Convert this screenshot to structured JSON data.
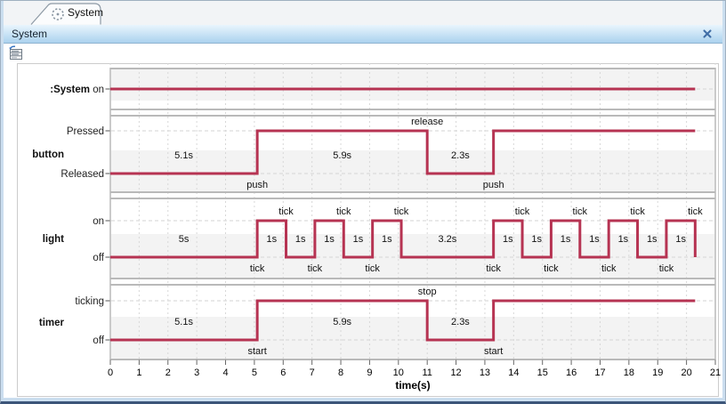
{
  "window": {
    "tab": {
      "label": "System",
      "icon": "timing-diagram-icon"
    },
    "title_bar": {
      "title": "System",
      "close_icon": "close-icon"
    },
    "toolbar": {
      "export_icon": "export-tsv-csv-icon"
    }
  },
  "colors": {
    "lifeline": "#b63352",
    "state_band": "#f3f3f3",
    "lane_border": "#b9b9b9",
    "grid_line": "#d8d8d8",
    "titlebar_top": "#e9f5fd",
    "titlebar_bottom": "#abd2ee",
    "close_x": "#3f6da6"
  },
  "chart_data": {
    "type": "timing-diagram",
    "title": "System",
    "xlabel": "time(s)",
    "xlim": [
      0,
      21
    ],
    "x_ticks": [
      0,
      1,
      2,
      3,
      4,
      5,
      6,
      7,
      8,
      9,
      10,
      11,
      12,
      13,
      14,
      15,
      16,
      17,
      18,
      19,
      20,
      21
    ],
    "solid_end": 20.3,
    "grid": true,
    "lifelines": [
      {
        "name": ":System",
        "states": [
          "on"
        ],
        "segments": [
          {
            "state": "on",
            "t0": 0,
            "t1": 20.3,
            "label": null
          }
        ],
        "events": []
      },
      {
        "name": "button",
        "states": [
          "Pressed",
          "Released"
        ],
        "segments": [
          {
            "state": "Released",
            "t0": 0,
            "t1": 5.1,
            "label": "5.1s"
          },
          {
            "state": "Pressed",
            "t0": 5.1,
            "t1": 11,
            "label": "5.9s"
          },
          {
            "state": "Released",
            "t0": 11,
            "t1": 13.3,
            "label": "2.3s"
          },
          {
            "state": "Pressed",
            "t0": 13.3,
            "t1": 20.3,
            "label": null
          }
        ],
        "events": [
          {
            "name": "push",
            "t": 5.1,
            "position": "below"
          },
          {
            "name": "release",
            "t": 11,
            "position": "above"
          },
          {
            "name": "push",
            "t": 13.3,
            "position": "below"
          }
        ]
      },
      {
        "name": "light",
        "states": [
          "on",
          "off"
        ],
        "segments": [
          {
            "state": "off",
            "t0": 0,
            "t1": 5.1,
            "label": "5s"
          },
          {
            "state": "on",
            "t0": 5.1,
            "t1": 6.1,
            "label": "1s"
          },
          {
            "state": "off",
            "t0": 6.1,
            "t1": 7.1,
            "label": "1s"
          },
          {
            "state": "on",
            "t0": 7.1,
            "t1": 8.1,
            "label": "1s"
          },
          {
            "state": "off",
            "t0": 8.1,
            "t1": 9.1,
            "label": "1s"
          },
          {
            "state": "on",
            "t0": 9.1,
            "t1": 10.1,
            "label": "1s"
          },
          {
            "state": "off",
            "t0": 10.1,
            "t1": 13.3,
            "label": "3.2s"
          },
          {
            "state": "on",
            "t0": 13.3,
            "t1": 14.3,
            "label": "1s"
          },
          {
            "state": "off",
            "t0": 14.3,
            "t1": 15.3,
            "label": "1s"
          },
          {
            "state": "on",
            "t0": 15.3,
            "t1": 16.3,
            "label": "1s"
          },
          {
            "state": "off",
            "t0": 16.3,
            "t1": 17.3,
            "label": "1s"
          },
          {
            "state": "on",
            "t0": 17.3,
            "t1": 18.3,
            "label": "1s"
          },
          {
            "state": "off",
            "t0": 18.3,
            "t1": 19.3,
            "label": "1s"
          },
          {
            "state": "on",
            "t0": 19.3,
            "t1": 20.3,
            "label": "1s"
          },
          {
            "state": "off",
            "t0": 20.3,
            "t1": 20.3,
            "label": null
          }
        ],
        "events": [
          {
            "name": "tick",
            "t": 5.1,
            "position": "below"
          },
          {
            "name": "tick",
            "t": 6.1,
            "position": "above"
          },
          {
            "name": "tick",
            "t": 7.1,
            "position": "below"
          },
          {
            "name": "tick",
            "t": 8.1,
            "position": "above"
          },
          {
            "name": "tick",
            "t": 9.1,
            "position": "below"
          },
          {
            "name": "tick",
            "t": 10.1,
            "position": "above"
          },
          {
            "name": "tick",
            "t": 13.3,
            "position": "below"
          },
          {
            "name": "tick",
            "t": 14.3,
            "position": "above"
          },
          {
            "name": "tick",
            "t": 15.3,
            "position": "below"
          },
          {
            "name": "tick",
            "t": 16.3,
            "position": "above"
          },
          {
            "name": "tick",
            "t": 17.3,
            "position": "below"
          },
          {
            "name": "tick",
            "t": 18.3,
            "position": "above"
          },
          {
            "name": "tick",
            "t": 19.3,
            "position": "below"
          },
          {
            "name": "tick",
            "t": 20.3,
            "position": "above"
          }
        ]
      },
      {
        "name": "timer",
        "states": [
          "ticking",
          "off"
        ],
        "segments": [
          {
            "state": "off",
            "t0": 0,
            "t1": 5.1,
            "label": "5.1s"
          },
          {
            "state": "ticking",
            "t0": 5.1,
            "t1": 11,
            "label": "5.9s"
          },
          {
            "state": "off",
            "t0": 11,
            "t1": 13.3,
            "label": "2.3s"
          },
          {
            "state": "ticking",
            "t0": 13.3,
            "t1": 20.3,
            "label": null
          }
        ],
        "events": [
          {
            "name": "start",
            "t": 5.1,
            "position": "below"
          },
          {
            "name": "stop",
            "t": 11,
            "position": "above"
          },
          {
            "name": "start",
            "t": 13.3,
            "position": "below"
          }
        ]
      }
    ]
  }
}
